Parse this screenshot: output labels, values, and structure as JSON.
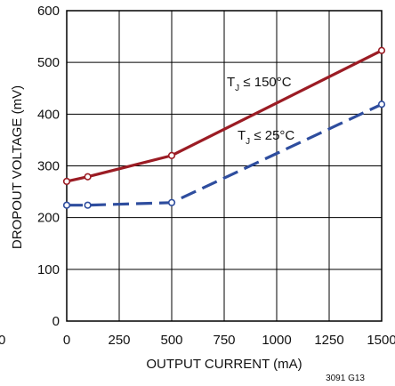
{
  "chart_data": {
    "type": "line",
    "xlabel": "OUTPUT CURRENT (mA)",
    "ylabel": "DROPOUT VOLTAGE (mV)",
    "xlim": [
      0,
      1500
    ],
    "ylim": [
      0,
      600
    ],
    "x_ticks": [
      0,
      250,
      500,
      750,
      1000,
      1250,
      1500
    ],
    "y_ticks": [
      0,
      100,
      200,
      300,
      400,
      500,
      600
    ],
    "grid": true,
    "series": [
      {
        "name": "TJ ≤ 150°C",
        "label_main": "T",
        "label_sub": "J",
        "label_rest": " ≤ 150°C",
        "color": "#9b1c24",
        "dash": "solid",
        "x": [
          0,
          100,
          500,
          1500
        ],
        "y": [
          270,
          279,
          320,
          523
        ]
      },
      {
        "name": "TJ ≤ 25°C",
        "label_main": "T",
        "label_sub": "J",
        "label_rest": " ≤ 25°C",
        "color": "#2e4d9e",
        "dash": "dashed",
        "x": [
          0,
          100,
          500,
          1500
        ],
        "y": [
          224,
          224,
          229,
          419
        ]
      }
    ],
    "figure_id": "3091 G13",
    "clipped_left_tick": "0"
  }
}
